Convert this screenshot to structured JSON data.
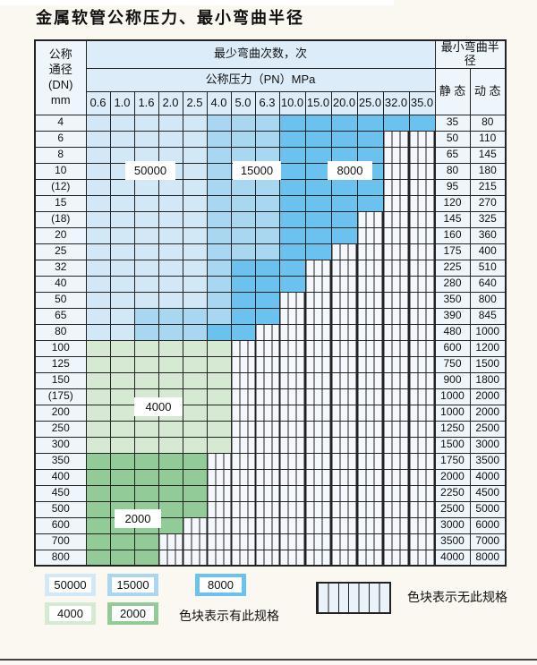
{
  "title": "金属软管公称压力、最小弯曲半径",
  "band_colors": {
    "50000": "#d2e8f7",
    "15000": "#a9d7f2",
    "8000": "#6cc2ee",
    "4000": "#d6e9d3",
    "2000": "#92cb97"
  },
  "no_spec_fill": "#f4f8fc",
  "table": {
    "header": {
      "dn": "公称\n通径\n(DN)\nmm",
      "bend_cycles": "最少弯曲次数，次",
      "pressure": "公称压力（PN）MPa",
      "pressures": [
        "0.6",
        "1.0",
        "1.6",
        "2.0",
        "2.5",
        "4.0",
        "5.0",
        "6.3",
        "10.0",
        "15.0",
        "20.0",
        "25.0",
        "32.0",
        "35.0"
      ],
      "min_bend_radius": "最小弯曲半径",
      "static": "静 态",
      "dynamic": "动 态"
    },
    "rows": [
      {
        "dn": "4",
        "bands": [
          {
            "count": "50000",
            "from": 0,
            "to": 4
          },
          {
            "count": "15000",
            "from": 5,
            "to": 7
          },
          {
            "count": "8000",
            "from": 8,
            "to": 13
          }
        ],
        "static": "35",
        "dynamic": "80"
      },
      {
        "dn": "6",
        "bands": [
          {
            "count": "50000",
            "from": 0,
            "to": 4
          },
          {
            "count": "15000",
            "from": 5,
            "to": 7
          },
          {
            "count": "8000",
            "from": 8,
            "to": 11
          }
        ],
        "static": "50",
        "dynamic": "110"
      },
      {
        "dn": "8",
        "bands": [
          {
            "count": "50000",
            "from": 0,
            "to": 4
          },
          {
            "count": "15000",
            "from": 5,
            "to": 7
          },
          {
            "count": "8000",
            "from": 8,
            "to": 11
          }
        ],
        "static": "65",
        "dynamic": "145"
      },
      {
        "dn": "10",
        "bands": [
          {
            "count": "50000",
            "from": 0,
            "to": 4
          },
          {
            "count": "15000",
            "from": 5,
            "to": 7
          },
          {
            "count": "8000",
            "from": 8,
            "to": 11
          }
        ],
        "static": "80",
        "dynamic": "180"
      },
      {
        "dn": "(12)",
        "bands": [
          {
            "count": "50000",
            "from": 0,
            "to": 4
          },
          {
            "count": "15000",
            "from": 5,
            "to": 7
          },
          {
            "count": "8000",
            "from": 8,
            "to": 11
          }
        ],
        "static": "95",
        "dynamic": "215"
      },
      {
        "dn": "15",
        "bands": [
          {
            "count": "50000",
            "from": 0,
            "to": 4
          },
          {
            "count": "15000",
            "from": 5,
            "to": 7
          },
          {
            "count": "8000",
            "from": 8,
            "to": 11
          }
        ],
        "static": "120",
        "dynamic": "270"
      },
      {
        "dn": "(18)",
        "bands": [
          {
            "count": "50000",
            "from": 0,
            "to": 4
          },
          {
            "count": "15000",
            "from": 5,
            "to": 7
          },
          {
            "count": "8000",
            "from": 8,
            "to": 10
          }
        ],
        "static": "145",
        "dynamic": "325"
      },
      {
        "dn": "20",
        "bands": [
          {
            "count": "50000",
            "from": 0,
            "to": 4
          },
          {
            "count": "15000",
            "from": 5,
            "to": 7
          },
          {
            "count": "8000",
            "from": 8,
            "to": 10
          }
        ],
        "static": "160",
        "dynamic": "360"
      },
      {
        "dn": "25",
        "bands": [
          {
            "count": "50000",
            "from": 0,
            "to": 4
          },
          {
            "count": "15000",
            "from": 5,
            "to": 7
          },
          {
            "count": "8000",
            "from": 8,
            "to": 9
          }
        ],
        "static": "175",
        "dynamic": "400"
      },
      {
        "dn": "32",
        "bands": [
          {
            "count": "50000",
            "from": 0,
            "to": 4
          },
          {
            "count": "15000",
            "from": 5,
            "to": 5
          },
          {
            "count": "8000",
            "from": 6,
            "to": 8
          }
        ],
        "static": "225",
        "dynamic": "510"
      },
      {
        "dn": "40",
        "bands": [
          {
            "count": "50000",
            "from": 0,
            "to": 4
          },
          {
            "count": "15000",
            "from": 5,
            "to": 5
          },
          {
            "count": "8000",
            "from": 6,
            "to": 8
          }
        ],
        "static": "280",
        "dynamic": "640"
      },
      {
        "dn": "50",
        "bands": [
          {
            "count": "50000",
            "from": 0,
            "to": 4
          },
          {
            "count": "15000",
            "from": 5,
            "to": 5
          },
          {
            "count": "8000",
            "from": 6,
            "to": 7
          }
        ],
        "static": "350",
        "dynamic": "800"
      },
      {
        "dn": "65",
        "bands": [
          {
            "count": "50000",
            "from": 0,
            "to": 1
          },
          {
            "count": "15000",
            "from": 2,
            "to": 5
          },
          {
            "count": "8000",
            "from": 6,
            "to": 7
          }
        ],
        "static": "390",
        "dynamic": "845"
      },
      {
        "dn": "80",
        "bands": [
          {
            "count": "50000",
            "from": 0,
            "to": 1
          },
          {
            "count": "15000",
            "from": 2,
            "to": 4
          },
          {
            "count": "8000",
            "from": 5,
            "to": 6
          }
        ],
        "static": "480",
        "dynamic": "1000"
      },
      {
        "dn": "100",
        "bands": [
          {
            "count": "4000",
            "from": 0,
            "to": 5
          }
        ],
        "static": "600",
        "dynamic": "1200"
      },
      {
        "dn": "125",
        "bands": [
          {
            "count": "4000",
            "from": 0,
            "to": 5
          }
        ],
        "static": "750",
        "dynamic": "1500"
      },
      {
        "dn": "150",
        "bands": [
          {
            "count": "4000",
            "from": 0,
            "to": 5
          }
        ],
        "static": "900",
        "dynamic": "1800"
      },
      {
        "dn": "(175)",
        "bands": [
          {
            "count": "4000",
            "from": 0,
            "to": 5
          }
        ],
        "static": "1000",
        "dynamic": "2000"
      },
      {
        "dn": "200",
        "bands": [
          {
            "count": "4000",
            "from": 0,
            "to": 5
          }
        ],
        "static": "1000",
        "dynamic": "2000"
      },
      {
        "dn": "250",
        "bands": [
          {
            "count": "4000",
            "from": 0,
            "to": 5
          }
        ],
        "static": "1250",
        "dynamic": "2500"
      },
      {
        "dn": "300",
        "bands": [
          {
            "count": "4000",
            "from": 0,
            "to": 5
          }
        ],
        "static": "1500",
        "dynamic": "3000"
      },
      {
        "dn": "350",
        "bands": [
          {
            "count": "2000",
            "from": 0,
            "to": 4
          }
        ],
        "static": "1750",
        "dynamic": "3500"
      },
      {
        "dn": "400",
        "bands": [
          {
            "count": "2000",
            "from": 0,
            "to": 4
          }
        ],
        "static": "2000",
        "dynamic": "4000"
      },
      {
        "dn": "450",
        "bands": [
          {
            "count": "2000",
            "from": 0,
            "to": 4
          }
        ],
        "static": "2250",
        "dynamic": "4500"
      },
      {
        "dn": "500",
        "bands": [
          {
            "count": "2000",
            "from": 0,
            "to": 4
          }
        ],
        "static": "2500",
        "dynamic": "5000"
      },
      {
        "dn": "600",
        "bands": [
          {
            "count": "2000",
            "from": 0,
            "to": 3
          }
        ],
        "static": "3000",
        "dynamic": "6000"
      },
      {
        "dn": "700",
        "bands": [
          {
            "count": "2000",
            "from": 0,
            "to": 2
          }
        ],
        "static": "3500",
        "dynamic": "7000"
      },
      {
        "dn": "800",
        "bands": [
          {
            "count": "2000",
            "from": 0,
            "to": 2
          }
        ],
        "static": "4000",
        "dynamic": "8000"
      }
    ]
  },
  "overlays": [
    {
      "label": "50000"
    },
    {
      "label": "15000"
    },
    {
      "label": "8000"
    },
    {
      "label": "4000"
    },
    {
      "label": "2000"
    }
  ],
  "legend": {
    "items": [
      "50000",
      "15000",
      "8000",
      "4000",
      "2000"
    ],
    "has_spec_text": "色块表示有此规格",
    "no_spec_text": "色块表示无此规格"
  }
}
